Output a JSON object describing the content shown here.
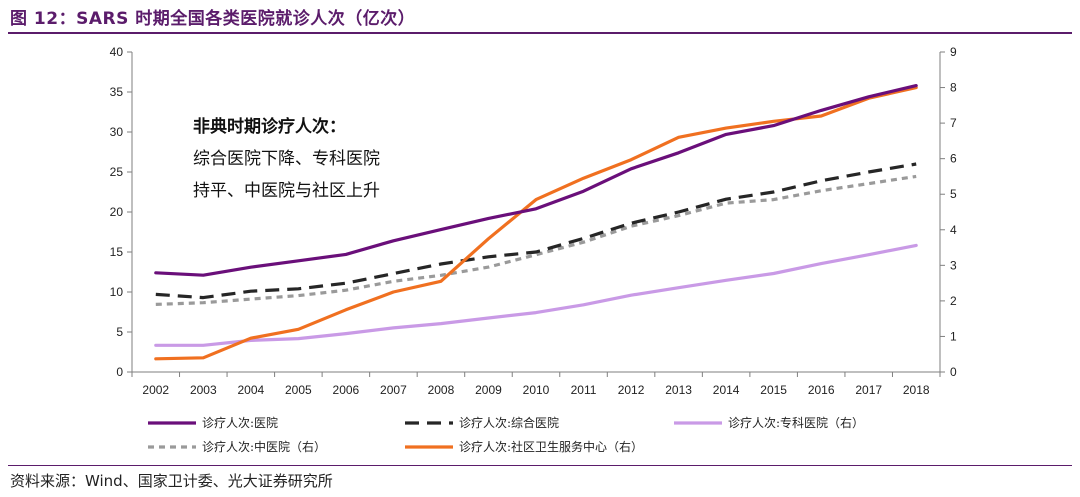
{
  "figure": {
    "title": "图 12：SARS 时期全国各类医院就诊人次（亿次）",
    "source": "资料来源：Wind、国家卫计委、光大证券研究所"
  },
  "chart_data": {
    "type": "line",
    "title": "图 12：SARS 时期全国各类医院就诊人次（亿次）",
    "x": [
      "2002",
      "2003",
      "2004",
      "2005",
      "2006",
      "2007",
      "2008",
      "2009",
      "2010",
      "2011",
      "2012",
      "2013",
      "2014",
      "2015",
      "2016",
      "2017",
      "2018"
    ],
    "y_left": {
      "range": [
        0,
        40
      ],
      "ticks": [
        "0",
        "5",
        "10",
        "15",
        "20",
        "25",
        "30",
        "35",
        "40"
      ]
    },
    "y_right": {
      "range": [
        0,
        9
      ],
      "ticks": [
        "0",
        "1",
        "2",
        "3",
        "4",
        "5",
        "6",
        "7",
        "8",
        "9"
      ]
    },
    "grid": false,
    "legend_position": "bottom",
    "annotation": {
      "heading": "非典时期诊疗人次：",
      "lines": [
        "综合医院下降、专科医院",
        "持平、中医院与社区上升"
      ]
    },
    "series": [
      {
        "name": "诊疗人次:医院",
        "axis": "left",
        "color": "#6a0f7a",
        "dash": "solid",
        "values": [
          12.4,
          12.1,
          13.1,
          13.9,
          14.7,
          16.4,
          17.8,
          19.2,
          20.4,
          22.6,
          25.4,
          27.4,
          29.7,
          30.8,
          32.7,
          34.4,
          35.8
        ]
      },
      {
        "name": "诊疗人次:综合医院",
        "axis": "left",
        "color": "#262626",
        "dash": "long",
        "values": [
          9.7,
          9.3,
          10.1,
          10.4,
          11.1,
          12.3,
          13.5,
          14.4,
          15.0,
          16.7,
          18.6,
          20.0,
          21.6,
          22.5,
          23.9,
          25.0,
          26.0
        ]
      },
      {
        "name": "诊疗人次:专科医院（右）",
        "axis": "right",
        "color": "#c99ae6",
        "dash": "solid",
        "values": [
          0.75,
          0.75,
          0.89,
          0.94,
          1.08,
          1.24,
          1.36,
          1.52,
          1.67,
          1.89,
          2.16,
          2.37,
          2.58,
          2.77,
          3.05,
          3.3,
          3.56
        ]
      },
      {
        "name": "诊疗人次:中医院（右）",
        "axis": "right",
        "color": "#9a9a9a",
        "dash": "short",
        "values": [
          1.9,
          1.95,
          2.05,
          2.15,
          2.3,
          2.55,
          2.72,
          2.95,
          3.3,
          3.65,
          4.1,
          4.4,
          4.75,
          4.85,
          5.1,
          5.3,
          5.5
        ]
      },
      {
        "name": "诊疗人次:社区卫生服务中心（右）",
        "axis": "right",
        "color": "#f07020",
        "dash": "solid",
        "values": [
          0.37,
          0.4,
          0.95,
          1.2,
          1.75,
          2.25,
          2.55,
          3.75,
          4.85,
          5.45,
          5.97,
          6.6,
          6.86,
          7.05,
          7.2,
          7.7,
          8.0
        ]
      }
    ]
  },
  "colors": {
    "title": "#5b1c6b",
    "rule": "#5b1c6b"
  }
}
